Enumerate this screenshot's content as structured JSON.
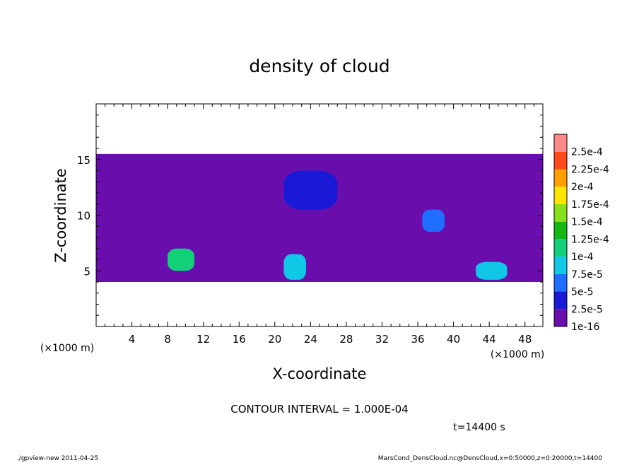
{
  "chart_data": {
    "type": "heatmap",
    "title": "density of cloud",
    "xlabel": "X-coordinate",
    "ylabel": "Z-coordinate",
    "x_unit_label_left": "(×1000 m)",
    "x_unit_label_right": "(×1000 m)",
    "xlim": [
      0,
      50
    ],
    "ylim": [
      0,
      20
    ],
    "x_ticks": [
      4,
      8,
      12,
      16,
      20,
      24,
      28,
      32,
      36,
      40,
      44,
      48
    ],
    "y_ticks": [
      5,
      10,
      15
    ],
    "colorbar": {
      "labels": [
        "1e-16",
        "2.5e-5",
        "5e-5",
        "7.5e-5",
        "1e-4",
        "1.25e-4",
        "1.5e-4",
        "1.75e-4",
        "2e-4",
        "2.25e-4",
        "2.5e-4"
      ],
      "colors": [
        "#6a0dad",
        "#1a1ad6",
        "#1e6eff",
        "#10c8e6",
        "#12d07a",
        "#14b814",
        "#86e01a",
        "#ffe600",
        "#ffa000",
        "#ff4a1a",
        "#ff8a8a"
      ]
    },
    "regions": [
      {
        "name": "cloud-layer",
        "level": "1e-16",
        "x": [
          0,
          50
        ],
        "z": [
          4,
          15.5
        ]
      },
      {
        "name": "upper-blob",
        "level": "2.5e-5",
        "x": [
          21,
          27
        ],
        "z": [
          10.5,
          14
        ]
      },
      {
        "name": "core-38",
        "level": "5e-5",
        "x": [
          36.5,
          39
        ],
        "z": [
          8.5,
          10.5
        ]
      },
      {
        "name": "core-9",
        "level": "1e-4",
        "x": [
          8,
          11
        ],
        "z": [
          5,
          7
        ]
      },
      {
        "name": "core-22",
        "level": "7.5e-5",
        "x": [
          21,
          23.5
        ],
        "z": [
          4.2,
          6.5
        ]
      },
      {
        "name": "core-44",
        "level": "7.5e-5",
        "x": [
          42.5,
          46
        ],
        "z": [
          4.2,
          5.8
        ]
      }
    ],
    "annotation": "CONTOUR INTERVAL = 1.000E-04",
    "time_label": "t=14400 s"
  },
  "footer": {
    "left": "./gpview-new   2011-04-25",
    "right": "MarsCond_DensCloud.nc@DensCloud,x=0:50000,z=0:20000,t=14400"
  }
}
